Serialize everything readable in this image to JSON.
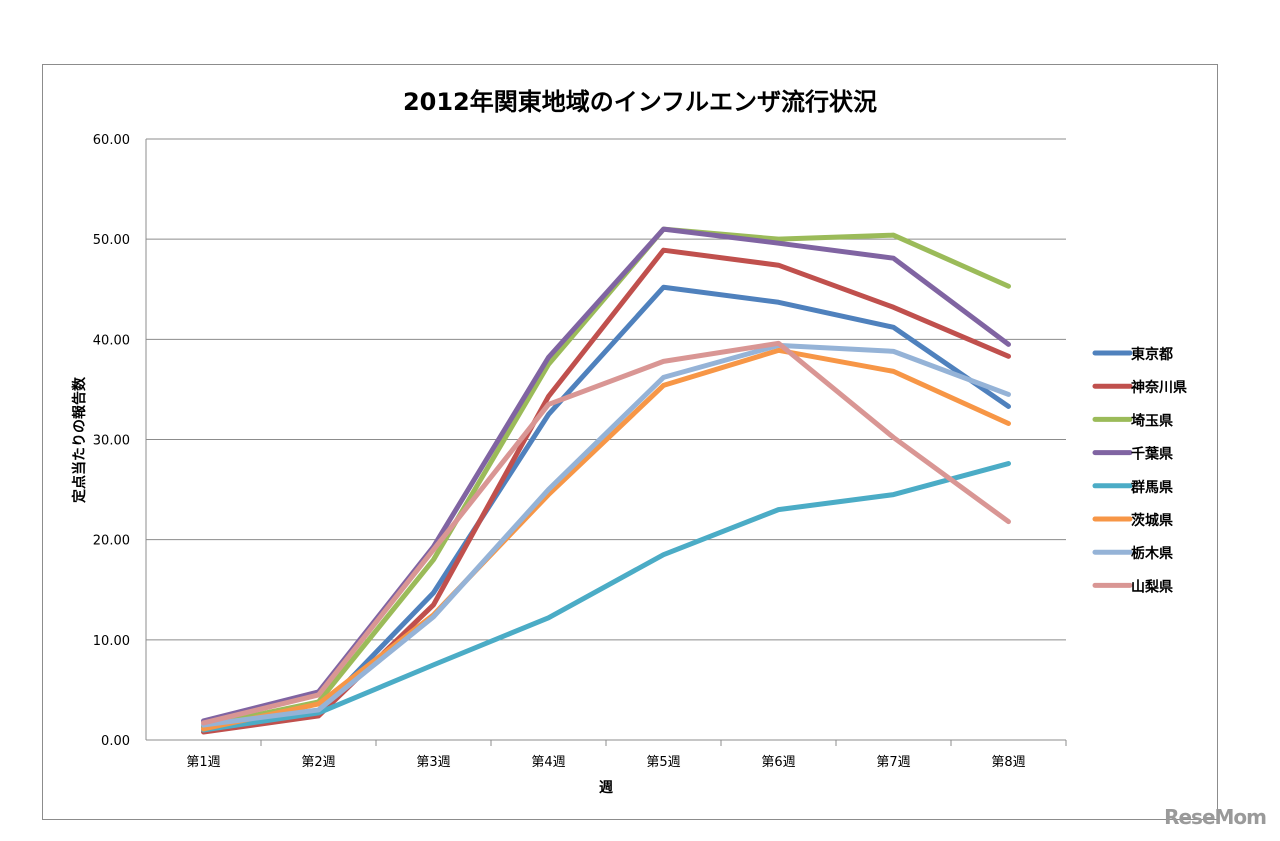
{
  "chart_data": {
    "type": "line",
    "title": "2012年関東地域のインフルエンザ流行状況",
    "xlabel": "週",
    "ylabel": "定点当たりの報告数",
    "categories": [
      "第1週",
      "第2週",
      "第3週",
      "第4週",
      "第5週",
      "第6週",
      "第7週",
      "第8週"
    ],
    "ylim": [
      0,
      60
    ],
    "yticks": [
      "0.00",
      "10.00",
      "20.00",
      "30.00",
      "40.00",
      "50.00",
      "60.00"
    ],
    "grid": true,
    "legend_position": "right",
    "series": [
      {
        "name": "東京都",
        "color": "#4f81bd",
        "values": [
          1.3,
          2.8,
          14.7,
          32.5,
          45.2,
          43.7,
          41.2,
          33.3
        ]
      },
      {
        "name": "神奈川県",
        "color": "#c0504d",
        "values": [
          0.8,
          2.4,
          13.5,
          34.3,
          48.9,
          47.4,
          43.2,
          38.3
        ]
      },
      {
        "name": "埼玉県",
        "color": "#9bbb59",
        "values": [
          1.4,
          3.8,
          18.0,
          37.5,
          51.0,
          50.0,
          50.4,
          45.3
        ]
      },
      {
        "name": "千葉県",
        "color": "#8064a2",
        "values": [
          1.9,
          4.8,
          19.3,
          38.2,
          51.0,
          49.6,
          48.1,
          39.5
        ]
      },
      {
        "name": "群馬県",
        "color": "#4bacc6",
        "values": [
          1.0,
          2.7,
          7.5,
          12.2,
          18.5,
          23.0,
          24.5,
          27.6
        ]
      },
      {
        "name": "茨城県",
        "color": "#f79646",
        "values": [
          1.1,
          3.6,
          12.5,
          24.5,
          35.4,
          38.9,
          36.8,
          31.6
        ]
      },
      {
        "name": "栃木県",
        "color": "#95b3d7",
        "values": [
          1.5,
          3.0,
          12.3,
          25.0,
          36.2,
          39.4,
          38.8,
          34.5
        ]
      },
      {
        "name": "山梨県",
        "color": "#d99694",
        "values": [
          1.7,
          4.5,
          19.0,
          33.5,
          37.8,
          39.6,
          30.2,
          21.8
        ]
      }
    ]
  },
  "watermark": "ReseMom"
}
